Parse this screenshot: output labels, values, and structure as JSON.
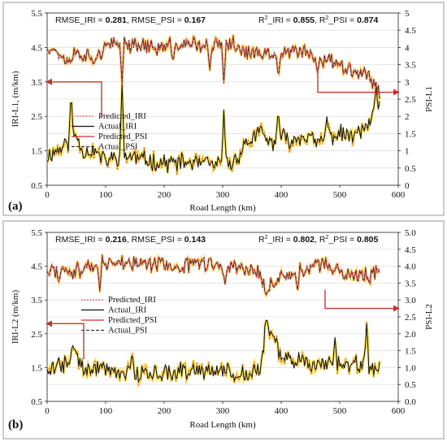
{
  "chart_data": [
    {
      "type": "line",
      "panel_label": "(a)",
      "xlabel": "Road Length (km)",
      "ylabel_left": "IRI-L1, (m/km)",
      "ylabel_right": "PSI-L1",
      "xlim": [
        0,
        600
      ],
      "xticks": [
        0,
        100,
        200,
        300,
        400,
        500,
        600
      ],
      "ylim_left": [
        0.5,
        5.5
      ],
      "yticks_left": [
        "0.5",
        "1.5",
        "2.5",
        "3.5",
        "4.5",
        "5.5"
      ],
      "ylim_right": [
        0,
        5
      ],
      "yticks_right": [
        "0",
        "0.5",
        "1",
        "1.5",
        "2",
        "2.5",
        "3",
        "3.5",
        "4",
        "4.5",
        "5"
      ],
      "metrics": {
        "rmse_iri_label": "RMSE_IRI = ",
        "rmse_iri": "0.281",
        "rmse_psi_label": ", RMSE_PSI = ",
        "rmse_psi": "0.167",
        "r2_iri_label": "_IRI = ",
        "r2_iri": "0.855",
        "r2_psi_label": ", R",
        "r2_psi_sep": "_PSI = ",
        "r2_psi": "0.874"
      },
      "legend": [
        "Predicted_IRI",
        "Actual_IRI",
        "Predicted_PSI",
        "Actual_PSI"
      ],
      "x_end": 568,
      "iri_profile": [
        [
          0,
          1.35
        ],
        [
          20,
          1.55
        ],
        [
          40,
          1.8
        ],
        [
          50,
          2.0
        ],
        [
          60,
          1.5
        ],
        [
          80,
          1.5
        ],
        [
          100,
          1.2
        ],
        [
          130,
          1.4
        ],
        [
          160,
          1.25
        ],
        [
          200,
          1.15
        ],
        [
          240,
          1.15
        ],
        [
          280,
          1.1
        ],
        [
          300,
          1.05
        ],
        [
          320,
          1.2
        ],
        [
          340,
          1.7
        ],
        [
          360,
          2.0
        ],
        [
          380,
          1.7
        ],
        [
          400,
          1.9
        ],
        [
          420,
          1.8
        ],
        [
          440,
          2.0
        ],
        [
          460,
          1.7
        ],
        [
          480,
          1.9
        ],
        [
          500,
          2.0
        ],
        [
          520,
          1.9
        ],
        [
          540,
          2.1
        ],
        [
          560,
          2.5
        ],
        [
          568,
          3.0
        ]
      ],
      "psi_profile": [
        [
          0,
          4.05
        ],
        [
          20,
          3.85
        ],
        [
          35,
          3.6
        ],
        [
          50,
          3.85
        ],
        [
          80,
          3.7
        ],
        [
          100,
          4.0
        ],
        [
          130,
          4.15
        ],
        [
          160,
          4.05
        ],
        [
          200,
          4.0
        ],
        [
          240,
          4.1
        ],
        [
          280,
          4.05
        ],
        [
          300,
          4.1
        ],
        [
          320,
          4.1
        ],
        [
          340,
          3.85
        ],
        [
          360,
          3.8
        ],
        [
          380,
          3.75
        ],
        [
          400,
          3.85
        ],
        [
          440,
          3.85
        ],
        [
          480,
          3.65
        ],
        [
          500,
          3.5
        ],
        [
          520,
          3.4
        ],
        [
          540,
          3.25
        ],
        [
          560,
          3.0
        ],
        [
          568,
          2.7
        ]
      ],
      "iri_spikes": [
        [
          41,
          3.25
        ],
        [
          128,
          3.45
        ],
        [
          302,
          2.7
        ],
        [
          365,
          2.3
        ],
        [
          395,
          2.7
        ],
        [
          478,
          2.5
        ],
        [
          562,
          3.35
        ]
      ],
      "psi_dips": [
        [
          128,
          3.0
        ],
        [
          215,
          3.55
        ],
        [
          278,
          3.4
        ],
        [
          302,
          2.95
        ],
        [
          395,
          3.1
        ],
        [
          462,
          3.25
        ]
      ]
    },
    {
      "type": "line",
      "panel_label": "(b)",
      "xlabel": "Road Length (km)",
      "ylabel_left": "IRI-L2 (m/km)",
      "ylabel_right": "PSI-L2",
      "xlim": [
        0,
        600
      ],
      "xticks": [
        0,
        100,
        200,
        300,
        400,
        500,
        600
      ],
      "ylim_left": [
        0.5,
        5.5
      ],
      "yticks_left": [
        "0.5",
        "1.5",
        "2.5",
        "3.5",
        "4.5",
        "5.5"
      ],
      "ylim_right": [
        0,
        5
      ],
      "yticks_right": [
        "0.0",
        "0.5",
        "1.0",
        "1.5",
        "2.0",
        "2.5",
        "3.0",
        "3.5",
        "4.0",
        "4.5",
        "5.0"
      ],
      "metrics": {
        "rmse_iri_label": "RMSE_IRI = ",
        "rmse_iri": "0.216",
        "rmse_psi_label": ", RMSE_PSI = ",
        "rmse_psi": "0.143",
        "r2_iri_label": "_IRI = ",
        "r2_iri": "0.802",
        "r2_psi_label": ", R",
        "r2_psi_sep": "_PSI = ",
        "r2_psi": "0.805"
      },
      "legend": [
        "Predicted_IRI",
        "Actual_IRI",
        "Predicted_PSI",
        "Actual_PSI"
      ],
      "x_end": 568,
      "iri_profile": [
        [
          0,
          1.5
        ],
        [
          30,
          1.6
        ],
        [
          45,
          2.0
        ],
        [
          60,
          1.5
        ],
        [
          100,
          1.45
        ],
        [
          140,
          1.3
        ],
        [
          180,
          1.35
        ],
        [
          220,
          1.4
        ],
        [
          260,
          1.35
        ],
        [
          300,
          1.35
        ],
        [
          340,
          1.3
        ],
        [
          365,
          1.5
        ],
        [
          375,
          2.6
        ],
        [
          400,
          1.9
        ],
        [
          420,
          1.7
        ],
        [
          460,
          1.6
        ],
        [
          500,
          1.55
        ],
        [
          540,
          1.6
        ],
        [
          568,
          1.5
        ]
      ],
      "psi_profile": [
        [
          0,
          3.9
        ],
        [
          40,
          3.7
        ],
        [
          60,
          4.0
        ],
        [
          100,
          4.05
        ],
        [
          140,
          4.1
        ],
        [
          180,
          4.05
        ],
        [
          220,
          4.0
        ],
        [
          260,
          4.05
        ],
        [
          300,
          4.0
        ],
        [
          340,
          3.95
        ],
        [
          360,
          3.85
        ],
        [
          375,
          3.3
        ],
        [
          400,
          3.7
        ],
        [
          440,
          3.9
        ],
        [
          470,
          4.05
        ],
        [
          500,
          3.8
        ],
        [
          540,
          3.7
        ],
        [
          568,
          3.8
        ]
      ],
      "iri_spikes": [
        [
          44,
          2.15
        ],
        [
          145,
          2.0
        ],
        [
          375,
          3.0
        ],
        [
          492,
          2.4
        ],
        [
          546,
          2.8
        ]
      ],
      "psi_dips": [
        [
          90,
          3.3
        ],
        [
          304,
          3.45
        ],
        [
          375,
          3.15
        ],
        [
          428,
          3.3
        ]
      ]
    }
  ]
}
